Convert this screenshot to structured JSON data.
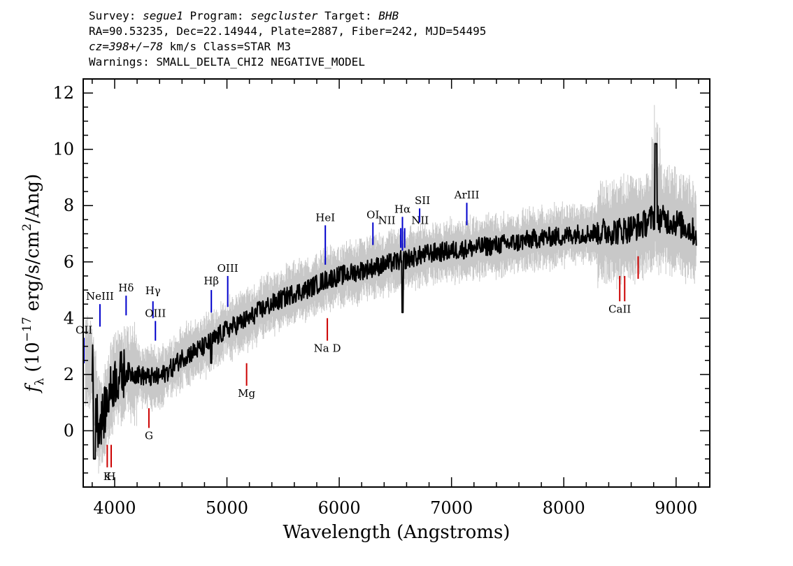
{
  "header": {
    "line1": {
      "survey_label": "Survey: ",
      "survey": "segue1",
      "program_label": " Program: ",
      "program": "segcluster",
      "target_label": " Target: ",
      "target": "BHB"
    },
    "line2": "RA=90.53235, Dec=22.14944, Plate=2887, Fiber=242, MJD=54495",
    "line3": {
      "cz": "cz=398+/−78",
      "rest": " km/s Class=STAR M3"
    },
    "line4": "Warnings: SMALL_DELTA_CHI2 NEGATIVE_MODEL"
  },
  "chart_data": {
    "type": "line",
    "xlabel": "Wavelength (Angstroms)",
    "ylabel": "f_λ (10^-17 erg/s/cm^2/Ang)",
    "xlim": [
      3720,
      9300
    ],
    "ylim": [
      -2.0,
      12.5
    ],
    "x_ticks": [
      4000,
      5000,
      6000,
      7000,
      8000,
      9000
    ],
    "y_ticks": [
      0,
      2,
      4,
      6,
      8,
      10,
      12
    ],
    "grid": false,
    "colors": {
      "flux": "#000000",
      "error": "#c8c8c8",
      "emission": "#0000cc",
      "absorption": "#cc0000"
    },
    "series": [
      {
        "x": [
          3800,
          3850,
          3900,
          3950,
          4000,
          4100,
          4200,
          4300,
          4400,
          4500,
          4600,
          4700,
          4800,
          4900,
          5000,
          5100,
          5200,
          5300,
          5400,
          5500,
          5600,
          5700,
          5800,
          5900,
          6000,
          6100,
          6200,
          6300,
          6400,
          6500,
          6600,
          6700,
          6800,
          6900,
          7000,
          7100,
          7200,
          7300,
          7400,
          7500,
          7600,
          7700,
          7800,
          7900,
          8000,
          8100,
          8200,
          8300,
          8400,
          8500,
          8600,
          8700,
          8800,
          8900,
          9000,
          9100,
          9180
        ],
        "values": [
          2.4,
          0.3,
          0.5,
          1.3,
          1.8,
          2.1,
          2.0,
          1.9,
          1.9,
          2.2,
          2.6,
          2.8,
          3.0,
          3.3,
          3.6,
          3.8,
          4.0,
          4.3,
          4.5,
          4.7,
          4.9,
          5.0,
          5.2,
          5.4,
          5.5,
          5.6,
          5.7,
          5.8,
          5.9,
          6.0,
          6.1,
          6.2,
          6.3,
          6.35,
          6.4,
          6.45,
          6.5,
          6.55,
          6.6,
          6.65,
          6.7,
          6.8,
          6.85,
          6.9,
          6.9,
          7.0,
          7.0,
          7.05,
          7.1,
          7.1,
          7.2,
          7.3,
          7.6,
          7.5,
          7.4,
          7.2,
          7.0
        ]
      }
    ],
    "emission_lines": [
      {
        "label": "OII",
        "x": 3727,
        "y0": 2.4,
        "y1": 3.3,
        "ly": 3.45,
        "side": "top"
      },
      {
        "label": "NeIII",
        "x": 3869,
        "y0": 3.7,
        "y1": 4.5,
        "ly": 4.65,
        "side": "top"
      },
      {
        "label": "Hδ",
        "x": 4102,
        "y0": 4.1,
        "y1": 4.8,
        "ly": 4.95,
        "side": "top"
      },
      {
        "label": "Hγ",
        "x": 4341,
        "y0": 4.0,
        "y1": 4.6,
        "ly": 4.85,
        "side": "top"
      },
      {
        "label": "OIII",
        "x": 4363,
        "y0": 3.2,
        "y1": 3.9,
        "ly": 4.05,
        "side": "top"
      },
      {
        "label": "Hβ",
        "x": 4861,
        "y0": 4.2,
        "y1": 5.0,
        "ly": 5.2,
        "side": "top"
      },
      {
        "label": "OIII",
        "x": 5007,
        "y0": 4.4,
        "y1": 5.5,
        "ly": 5.65,
        "side": "top"
      },
      {
        "label": "HeI",
        "x": 5876,
        "y0": 5.9,
        "y1": 7.3,
        "ly": 7.45,
        "side": "top"
      },
      {
        "label": "OI",
        "x": 6300,
        "y0": 6.6,
        "y1": 7.4,
        "ly": 7.55,
        "side": "top"
      },
      {
        "label": "NII",
        "x": 6548,
        "y0": 6.5,
        "y1": 7.2,
        "ly": 7.35,
        "side": "top",
        "dx": -20
      },
      {
        "label": "Hα",
        "x": 6563,
        "y0": 6.4,
        "y1": 7.6,
        "ly": 7.75,
        "side": "top"
      },
      {
        "label": "NII",
        "x": 6583,
        "y0": 6.5,
        "y1": 7.2,
        "ly": 7.35,
        "side": "top",
        "dx": 22
      },
      {
        "label": "SII",
        "x": 6716,
        "y0": 7.4,
        "y1": 7.9,
        "ly": 8.05,
        "side": "top",
        "dx": 4
      },
      {
        "label": "ArIII",
        "x": 7136,
        "y0": 7.3,
        "y1": 8.1,
        "ly": 8.25,
        "side": "top"
      }
    ],
    "absorption_lines": [
      {
        "label": "K",
        "x": 3934,
        "y0": -1.3,
        "y1": -0.5,
        "ly": -1.75,
        "side": "bottom"
      },
      {
        "label": "H",
        "x": 3969,
        "y0": -1.3,
        "y1": -0.5,
        "ly": -1.75,
        "side": "bottom"
      },
      {
        "label": "G",
        "x": 4305,
        "y0": 0.1,
        "y1": 0.8,
        "ly": -0.3,
        "side": "bottom"
      },
      {
        "label": "Mg",
        "x": 5175,
        "y0": 1.6,
        "y1": 2.4,
        "ly": 1.2,
        "side": "bottom"
      },
      {
        "label": "Na D",
        "x": 5894,
        "y0": 3.2,
        "y1": 4.0,
        "ly": 2.8,
        "side": "bottom"
      },
      {
        "label": "CaII",
        "x": 8498,
        "y0": 4.6,
        "y1": 5.5,
        "ly": 4.2,
        "side": "bottom"
      },
      {
        "label": "",
        "x": 8542,
        "y0": 4.6,
        "y1": 5.5
      },
      {
        "label": "",
        "x": 8662,
        "y0": 5.4,
        "y1": 6.2
      }
    ]
  }
}
